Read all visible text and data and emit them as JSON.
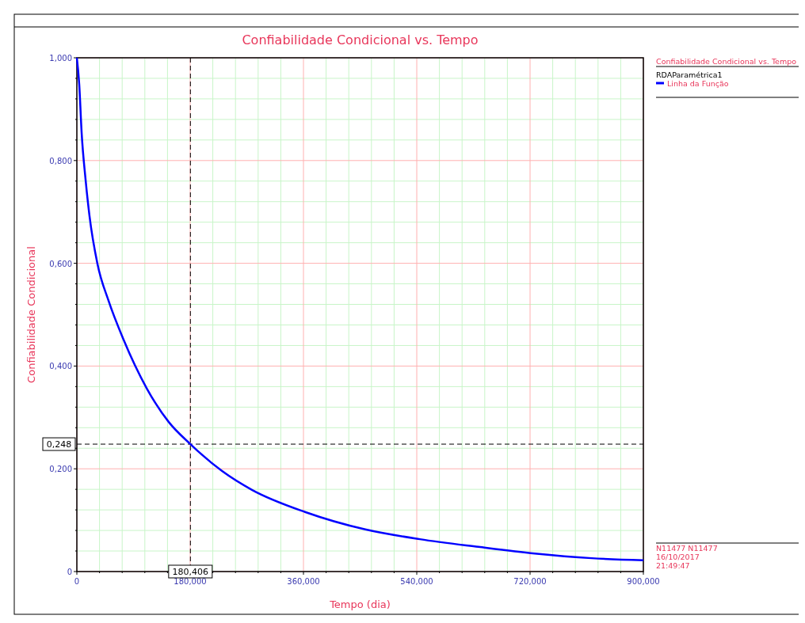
{
  "chart_data": {
    "type": "line",
    "title": "Confiabilidade Condicional vs. Tempo",
    "xlabel": "Tempo (dia)",
    "ylabel": "Confiabilidade Condicional",
    "legend_title": "RDAParamétrica1",
    "legend": "right",
    "grid": true,
    "line_style": "solid",
    "marker": "none",
    "xlim": [
      0,
      900
    ],
    "ylim": [
      0,
      1
    ],
    "xticks": [
      {
        "value": 0,
        "label": "0"
      },
      {
        "value": 36,
        "label": null
      },
      {
        "value": 72,
        "label": null
      },
      {
        "value": 108,
        "label": null
      },
      {
        "value": 144,
        "label": null
      },
      {
        "value": 180,
        "label": "180,000"
      },
      {
        "value": 216,
        "label": null
      },
      {
        "value": 252,
        "label": null
      },
      {
        "value": 288,
        "label": null
      },
      {
        "value": 324,
        "label": null
      },
      {
        "value": 360,
        "label": "360,000"
      },
      {
        "value": 396,
        "label": null
      },
      {
        "value": 432,
        "label": null
      },
      {
        "value": 468,
        "label": null
      },
      {
        "value": 504,
        "label": null
      },
      {
        "value": 540,
        "label": "540,000"
      },
      {
        "value": 576,
        "label": null
      },
      {
        "value": 612,
        "label": null
      },
      {
        "value": 648,
        "label": null
      },
      {
        "value": 684,
        "label": null
      },
      {
        "value": 720,
        "label": "720,000"
      },
      {
        "value": 756,
        "label": null
      },
      {
        "value": 792,
        "label": null
      },
      {
        "value": 828,
        "label": null
      },
      {
        "value": 864,
        "label": null
      },
      {
        "value": 900,
        "label": "900,000"
      }
    ],
    "yticks": [
      {
        "value": 0,
        "label": "0"
      },
      {
        "value": 0.04,
        "label": null
      },
      {
        "value": 0.08,
        "label": null
      },
      {
        "value": 0.12,
        "label": null
      },
      {
        "value": 0.16,
        "label": null
      },
      {
        "value": 0.2,
        "label": "0,200"
      },
      {
        "value": 0.24,
        "label": null
      },
      {
        "value": 0.28,
        "label": null
      },
      {
        "value": 0.32,
        "label": null
      },
      {
        "value": 0.36,
        "label": null
      },
      {
        "value": 0.4,
        "label": "0,400"
      },
      {
        "value": 0.44,
        "label": null
      },
      {
        "value": 0.48,
        "label": null
      },
      {
        "value": 0.52,
        "label": null
      },
      {
        "value": 0.56,
        "label": null
      },
      {
        "value": 0.6,
        "label": "0,600"
      },
      {
        "value": 0.64,
        "label": null
      },
      {
        "value": 0.68,
        "label": null
      },
      {
        "value": 0.72,
        "label": null
      },
      {
        "value": 0.76,
        "label": null
      },
      {
        "value": 0.8,
        "label": "0,800"
      },
      {
        "value": 0.84,
        "label": null
      },
      {
        "value": 0.88,
        "label": null
      },
      {
        "value": 0.92,
        "label": null
      },
      {
        "value": 0.96,
        "label": null
      },
      {
        "value": 1,
        "label": "1,000"
      }
    ],
    "series": [
      {
        "name": "Linha da Função",
        "color": "#0000ff",
        "x": [
          0,
          3.8,
          7.55,
          13.85,
          20.1,
          32.7,
          50.35,
          74.3,
          110.8,
          146,
          180.406,
          230.3,
          278.2,
          362.5,
          458.2,
          545,
          638,
          727.5,
          818,
          900
        ],
        "values": [
          1,
          0.948,
          0.855,
          0.763,
          0.692,
          0.599,
          0.527,
          0.451,
          0.357,
          0.291,
          0.248,
          0.196,
          0.159,
          0.116,
          0.082,
          0.063,
          0.048,
          0.035,
          0.026,
          0.022
        ]
      }
    ],
    "ref_lines": [
      {
        "axis": "x",
        "value": 180.406,
        "label": "180,406",
        "color": "#000000",
        "line_style": "dashed"
      },
      {
        "axis": "y",
        "value": 0.248,
        "label": "0,248",
        "color": "#000000",
        "line_style": "dashed"
      }
    ],
    "annotations": [
      "Confiabilidade Condicional vs. Tempo",
      "N11477 N11477",
      "16/10/2017",
      "21:49:47"
    ]
  }
}
